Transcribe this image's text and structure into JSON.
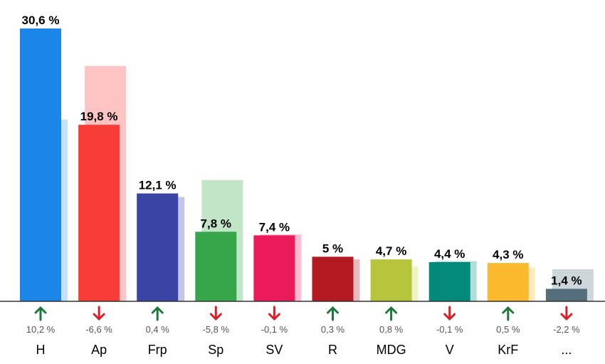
{
  "chart_data": {
    "type": "bar",
    "categories": [
      "H",
      "Ap",
      "Frp",
      "Sp",
      "SV",
      "R",
      "MDG",
      "V",
      "KrF",
      "..."
    ],
    "values": [
      30.6,
      19.8,
      12.1,
      7.8,
      7.4,
      5,
      4.7,
      4.4,
      4.3,
      1.4
    ],
    "value_labels": [
      "30,6 %",
      "19,8 %",
      "12,1 %",
      "7,8 %",
      "7,4 %",
      "5 %",
      "4,7 %",
      "4,4 %",
      "4,3 %",
      "1,4 %"
    ],
    "previous_values": [
      20.4,
      26.4,
      11.7,
      13.6,
      7.5,
      4.7,
      3.9,
      4.5,
      3.8,
      3.6
    ],
    "changes": [
      10.2,
      -6.6,
      0.4,
      -5.8,
      -0.1,
      0.3,
      0.8,
      -0.1,
      0.5,
      -2.2
    ],
    "change_labels": [
      "10,2 %",
      "-6,6 %",
      "0,4 %",
      "-5,8 %",
      "-0,1 %",
      "0,3 %",
      "0,8 %",
      "-0,1 %",
      "0,5 %",
      "-2,2 %"
    ],
    "colors": [
      "#1b86e8",
      "#f83c38",
      "#3a44a5",
      "#37a64a",
      "#eb1a5a",
      "#b31a22",
      "#b6c53b",
      "#038a7b",
      "#fbb92d",
      "#546e7b"
    ],
    "previous_colors": [
      "#c5e1f9",
      "#fec3c3",
      "#c4c6e6",
      "#c2e5c7",
      "#fcbdd0",
      "#e8bbbd",
      "#eff2c3",
      "#b0ddd8",
      "#feebbc",
      "#cdd6db"
    ],
    "ylim": [
      0,
      32
    ],
    "up_arrow_color": "#1b7a39",
    "down_arrow_color": "#d81f26",
    "grid": false,
    "legend": "none"
  }
}
